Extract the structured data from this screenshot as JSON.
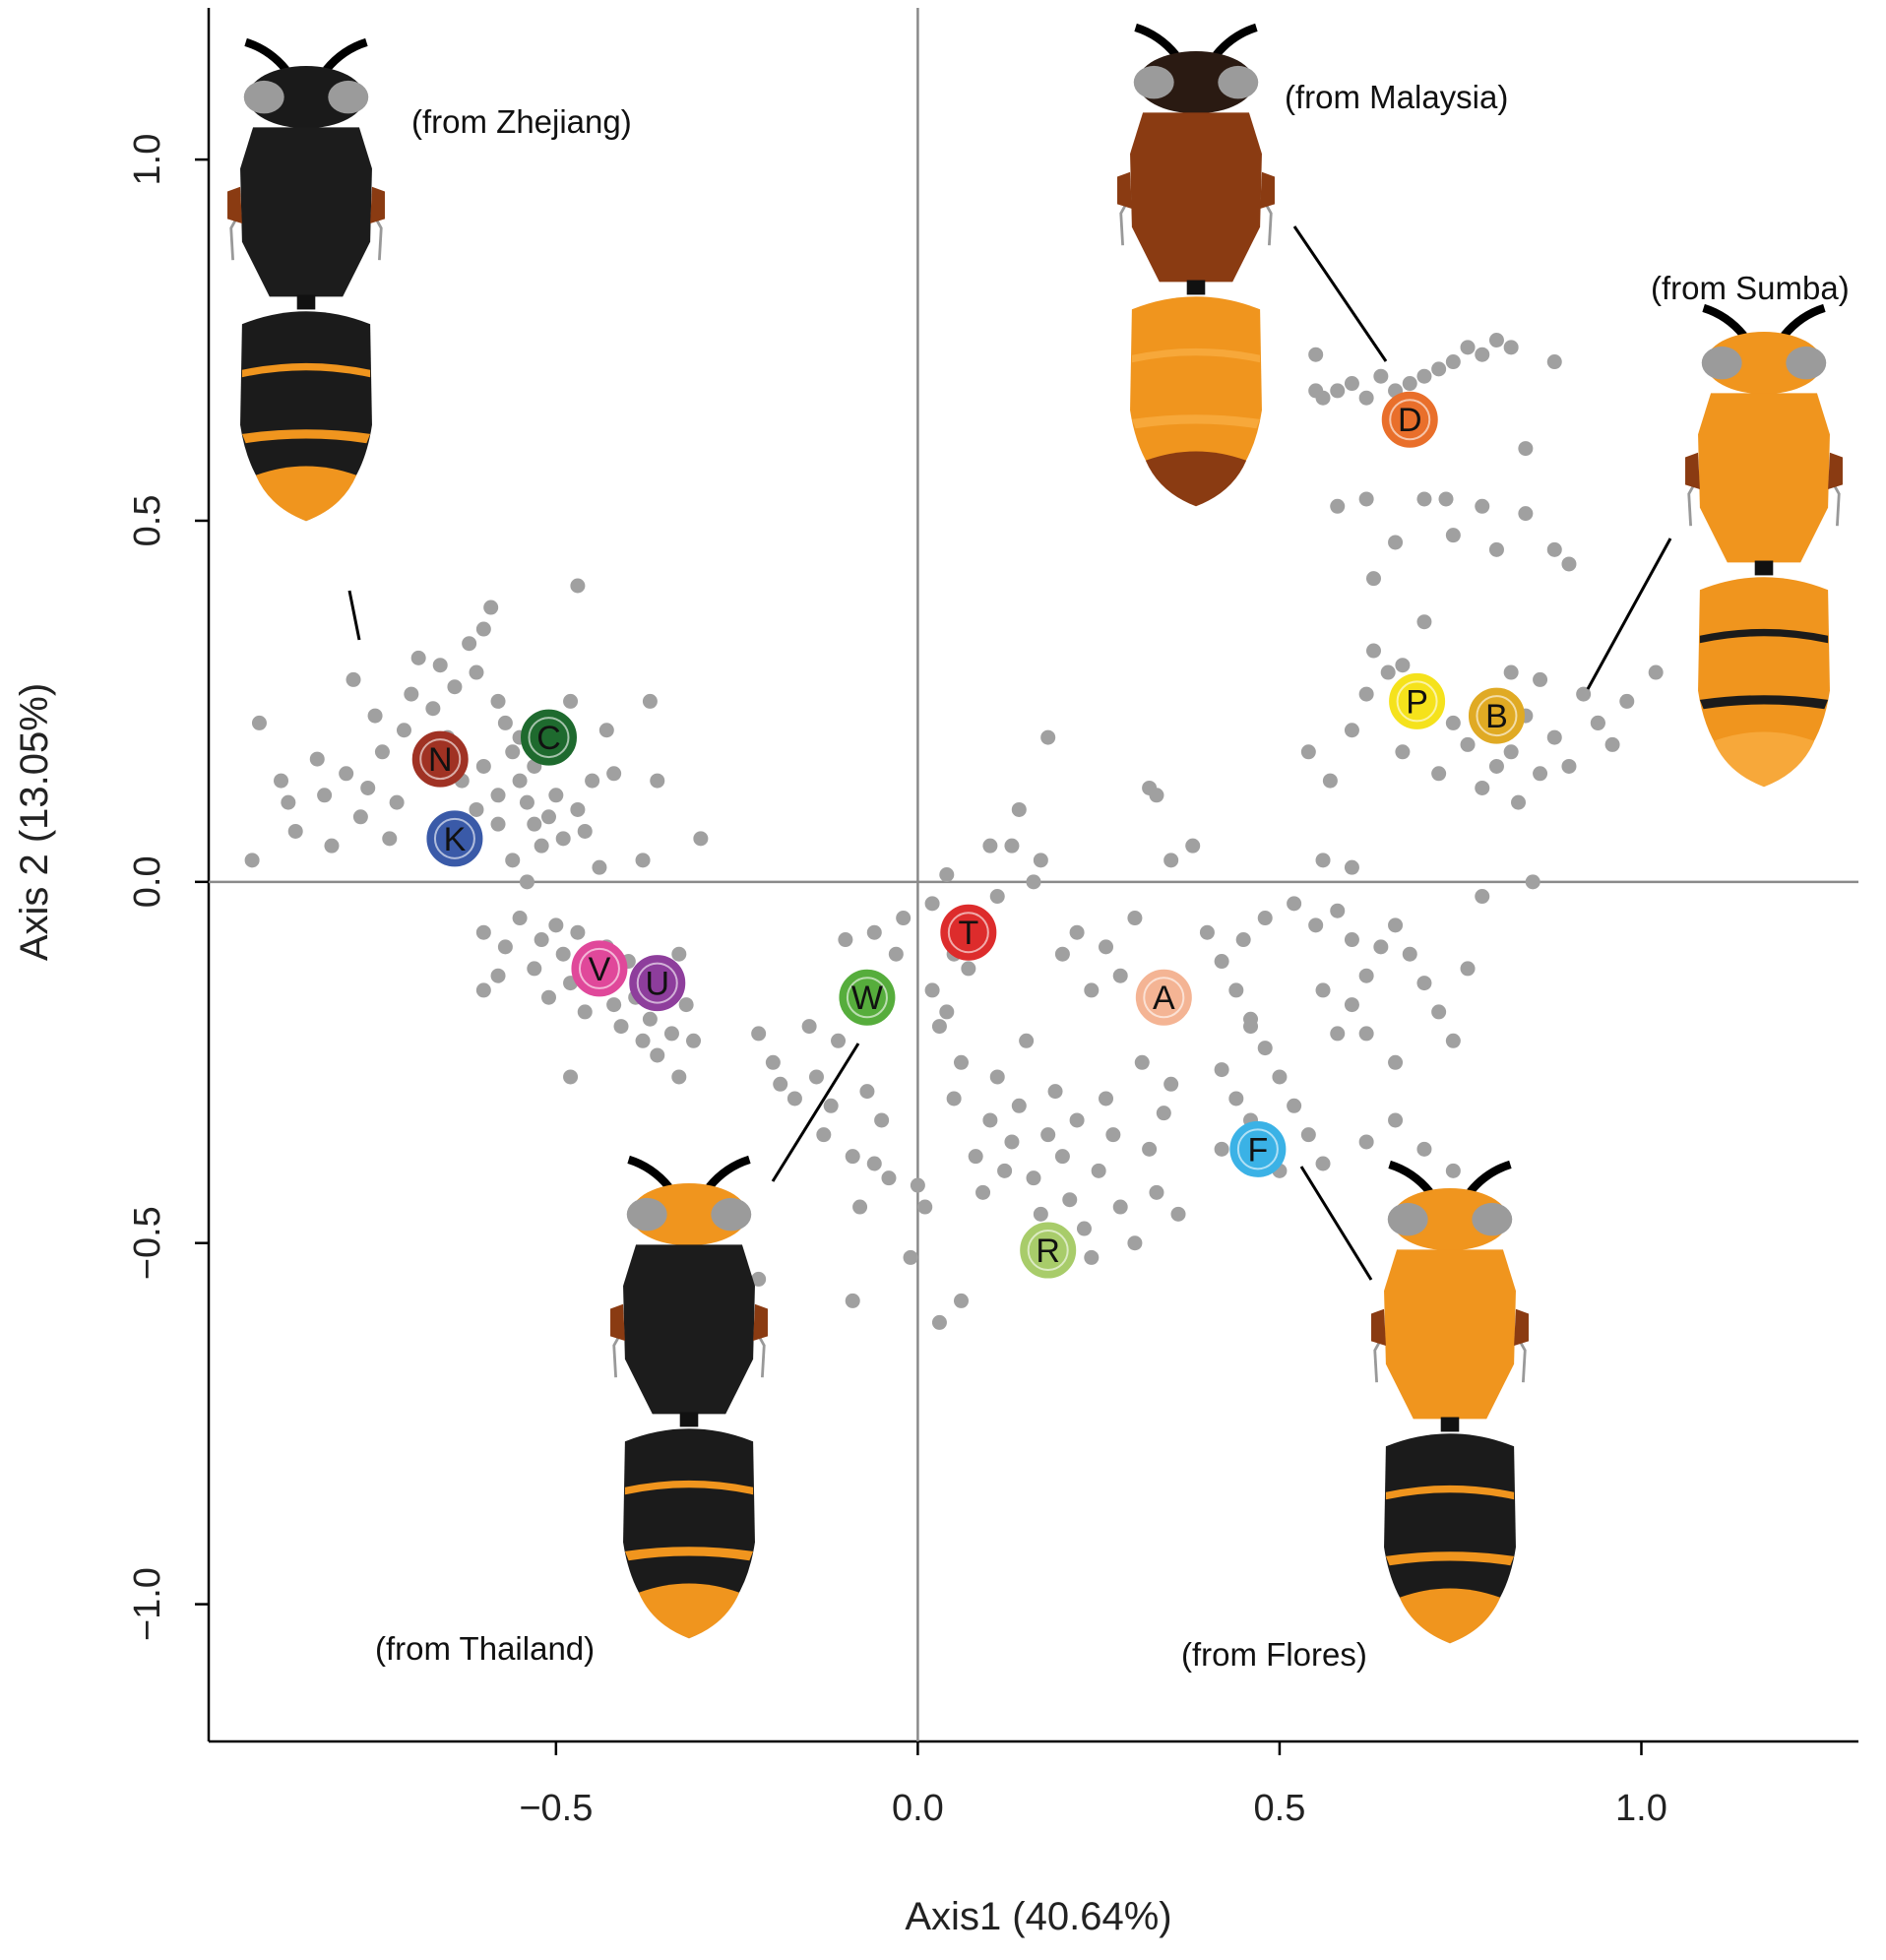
{
  "chart_data": {
    "type": "scatter",
    "xlabel": "Axis1 (40.64%)",
    "ylabel": "Axis 2 (13.05%)",
    "xlim": [
      -0.98,
      1.3
    ],
    "ylim": [
      -1.19,
      1.21
    ],
    "xticks": [
      -0.5,
      0.0,
      0.5,
      1.0
    ],
    "yticks": [
      -1.0,
      -0.5,
      0.0,
      0.5,
      1.0
    ],
    "xtick_labels": [
      "−0.5",
      "0.0",
      "0.5",
      "1.0"
    ],
    "ytick_labels": [
      "−1.0",
      "−0.5",
      "0.0",
      "0.5",
      "1.0"
    ],
    "grid": false,
    "reference_lines": {
      "x": 0.0,
      "y": 0.0
    },
    "point_color": "#a0a0a0",
    "points": [
      [
        -0.91,
        0.22
      ],
      [
        -0.92,
        0.03
      ],
      [
        -0.88,
        0.14
      ],
      [
        -0.86,
        0.07
      ],
      [
        -0.87,
        0.11
      ],
      [
        -0.83,
        0.17
      ],
      [
        -0.82,
        0.12
      ],
      [
        -0.79,
        0.15
      ],
      [
        -0.77,
        0.09
      ],
      [
        -0.81,
        0.05
      ],
      [
        -0.78,
        0.28
      ],
      [
        -0.76,
        0.13
      ],
      [
        -0.74,
        0.18
      ],
      [
        -0.73,
        0.06
      ],
      [
        -0.71,
        0.21
      ],
      [
        -0.7,
        0.26
      ],
      [
        -0.69,
        0.31
      ],
      [
        -0.67,
        0.24
      ],
      [
        -0.66,
        0.3
      ],
      [
        -0.65,
        0.2
      ],
      [
        -0.64,
        0.27
      ],
      [
        -0.62,
        0.33
      ],
      [
        -0.61,
        0.29
      ],
      [
        -0.6,
        0.35
      ],
      [
        -0.59,
        0.38
      ],
      [
        -0.58,
        0.25
      ],
      [
        -0.57,
        0.22
      ],
      [
        -0.56,
        0.18
      ],
      [
        -0.55,
        0.14
      ],
      [
        -0.54,
        0.11
      ],
      [
        -0.53,
        0.08
      ],
      [
        -0.52,
        0.05
      ],
      [
        -0.61,
        0.1
      ],
      [
        -0.58,
        0.08
      ],
      [
        -0.56,
        0.03
      ],
      [
        -0.54,
        0.0
      ],
      [
        -0.5,
        0.12
      ],
      [
        -0.48,
        0.25
      ],
      [
        -0.47,
        0.1
      ],
      [
        -0.46,
        0.07
      ],
      [
        -0.45,
        0.14
      ],
      [
        -0.44,
        0.02
      ],
      [
        -0.43,
        0.21
      ],
      [
        -0.42,
        0.15
      ],
      [
        -0.38,
        0.03
      ],
      [
        -0.37,
        0.25
      ],
      [
        -0.36,
        0.14
      ],
      [
        -0.3,
        0.06
      ],
      [
        -0.47,
        0.41
      ],
      [
        -0.75,
        0.23
      ],
      [
        -0.72,
        0.11
      ],
      [
        -0.68,
        0.16
      ],
      [
        -0.63,
        0.14
      ],
      [
        -0.6,
        0.16
      ],
      [
        -0.58,
        0.12
      ],
      [
        -0.55,
        0.2
      ],
      [
        -0.53,
        0.16
      ],
      [
        -0.51,
        0.09
      ],
      [
        -0.49,
        0.06
      ],
      [
        -0.6,
        -0.07
      ],
      [
        -0.58,
        -0.13
      ],
      [
        -0.57,
        -0.09
      ],
      [
        -0.55,
        -0.05
      ],
      [
        -0.53,
        -0.12
      ],
      [
        -0.52,
        -0.08
      ],
      [
        -0.51,
        -0.16
      ],
      [
        -0.5,
        -0.06
      ],
      [
        -0.49,
        -0.1
      ],
      [
        -0.48,
        -0.14
      ],
      [
        -0.47,
        -0.07
      ],
      [
        -0.46,
        -0.18
      ],
      [
        -0.45,
        -0.13
      ],
      [
        -0.43,
        -0.09
      ],
      [
        -0.42,
        -0.17
      ],
      [
        -0.41,
        -0.2
      ],
      [
        -0.4,
        -0.11
      ],
      [
        -0.39,
        -0.16
      ],
      [
        -0.38,
        -0.22
      ],
      [
        -0.37,
        -0.19
      ],
      [
        -0.36,
        -0.24
      ],
      [
        -0.35,
        -0.14
      ],
      [
        -0.34,
        -0.21
      ],
      [
        -0.33,
        -0.1
      ],
      [
        -0.32,
        -0.17
      ],
      [
        -0.31,
        -0.22
      ],
      [
        -0.48,
        -0.27
      ],
      [
        -0.33,
        -0.27
      ],
      [
        -0.6,
        -0.15
      ],
      [
        -0.22,
        -0.21
      ],
      [
        -0.2,
        -0.25
      ],
      [
        -0.19,
        -0.28
      ],
      [
        -0.17,
        -0.3
      ],
      [
        -0.15,
        -0.2
      ],
      [
        -0.14,
        -0.27
      ],
      [
        -0.13,
        -0.35
      ],
      [
        -0.12,
        -0.31
      ],
      [
        -0.11,
        -0.22
      ],
      [
        -0.1,
        -0.08
      ],
      [
        -0.09,
        -0.38
      ],
      [
        -0.08,
        -0.45
      ],
      [
        -0.07,
        -0.29
      ],
      [
        -0.06,
        -0.39
      ],
      [
        -0.05,
        -0.33
      ],
      [
        -0.04,
        -0.41
      ],
      [
        -0.06,
        -0.07
      ],
      [
        -0.03,
        -0.1
      ],
      [
        -0.02,
        -0.05
      ],
      [
        -0.01,
        -0.52
      ],
      [
        0.0,
        -0.42
      ],
      [
        0.01,
        -0.45
      ],
      [
        0.02,
        -0.15
      ],
      [
        0.03,
        -0.2
      ],
      [
        0.04,
        -0.18
      ],
      [
        0.05,
        -0.3
      ],
      [
        0.06,
        -0.25
      ],
      [
        0.07,
        -0.12
      ],
      [
        0.08,
        -0.38
      ],
      [
        0.09,
        -0.43
      ],
      [
        0.1,
        -0.33
      ],
      [
        0.11,
        -0.27
      ],
      [
        0.12,
        -0.4
      ],
      [
        0.13,
        -0.36
      ],
      [
        0.14,
        -0.31
      ],
      [
        0.15,
        -0.22
      ],
      [
        0.16,
        -0.41
      ],
      [
        0.17,
        -0.46
      ],
      [
        0.18,
        -0.35
      ],
      [
        0.19,
        -0.29
      ],
      [
        0.2,
        -0.38
      ],
      [
        0.21,
        -0.44
      ],
      [
        0.22,
        -0.33
      ],
      [
        0.23,
        -0.48
      ],
      [
        0.24,
        -0.52
      ],
      [
        0.25,
        -0.4
      ],
      [
        0.26,
        -0.3
      ],
      [
        0.27,
        -0.35
      ],
      [
        0.28,
        -0.45
      ],
      [
        0.3,
        -0.5
      ],
      [
        0.31,
        -0.25
      ],
      [
        0.32,
        -0.37
      ],
      [
        0.33,
        -0.43
      ],
      [
        0.34,
        -0.32
      ],
      [
        0.35,
        -0.28
      ],
      [
        0.36,
        -0.46
      ],
      [
        0.05,
        -0.1
      ],
      [
        0.08,
        -0.06
      ],
      [
        0.11,
        -0.02
      ],
      [
        0.13,
        0.05
      ],
      [
        0.17,
        0.03
      ],
      [
        0.2,
        -0.1
      ],
      [
        0.22,
        -0.07
      ],
      [
        0.24,
        -0.15
      ],
      [
        0.26,
        -0.09
      ],
      [
        0.28,
        -0.13
      ],
      [
        0.3,
        -0.05
      ],
      [
        0.18,
        0.2
      ],
      [
        0.32,
        0.13
      ],
      [
        0.33,
        0.12
      ],
      [
        0.35,
        0.03
      ],
      [
        0.38,
        0.05
      ],
      [
        0.4,
        -0.07
      ],
      [
        0.42,
        -0.11
      ],
      [
        0.44,
        -0.15
      ],
      [
        0.46,
        -0.19
      ],
      [
        0.48,
        -0.23
      ],
      [
        0.5,
        -0.27
      ],
      [
        0.52,
        -0.31
      ],
      [
        0.54,
        -0.35
      ],
      [
        0.56,
        -0.39
      ],
      [
        0.58,
        -0.21
      ],
      [
        0.6,
        -0.17
      ],
      [
        0.62,
        -0.13
      ],
      [
        0.64,
        -0.09
      ],
      [
        0.66,
        -0.06
      ],
      [
        0.68,
        -0.1
      ],
      [
        0.7,
        -0.14
      ],
      [
        0.72,
        -0.18
      ],
      [
        0.74,
        -0.22
      ],
      [
        0.76,
        -0.12
      ],
      [
        0.45,
        -0.08
      ],
      [
        0.48,
        -0.05
      ],
      [
        0.52,
        -0.03
      ],
      [
        0.55,
        -0.06
      ],
      [
        0.58,
        -0.04
      ],
      [
        0.6,
        -0.08
      ],
      [
        0.5,
        -0.4
      ],
      [
        0.48,
        -0.36
      ],
      [
        0.46,
        -0.33
      ],
      [
        0.44,
        -0.3
      ],
      [
        0.42,
        -0.26
      ],
      [
        0.62,
        -0.36
      ],
      [
        0.66,
        -0.33
      ],
      [
        0.7,
        -0.37
      ],
      [
        0.74,
        -0.4
      ],
      [
        0.56,
        -0.15
      ],
      [
        0.62,
        -0.21
      ],
      [
        0.66,
        -0.25
      ],
      [
        0.46,
        -0.2
      ],
      [
        0.42,
        -0.37
      ],
      [
        -0.22,
        -0.55
      ],
      [
        -0.09,
        -0.58
      ],
      [
        0.03,
        -0.61
      ],
      [
        0.06,
        -0.58
      ],
      [
        0.02,
        -0.03
      ],
      [
        0.04,
        0.01
      ],
      [
        0.1,
        0.05
      ],
      [
        0.14,
        0.1
      ],
      [
        0.16,
        0.0
      ],
      [
        0.6,
        0.02
      ],
      [
        0.56,
        0.03
      ],
      [
        0.78,
        -0.02
      ],
      [
        0.54,
        0.18
      ],
      [
        0.57,
        0.14
      ],
      [
        0.6,
        0.21
      ],
      [
        0.62,
        0.26
      ],
      [
        0.65,
        0.29
      ],
      [
        0.67,
        0.18
      ],
      [
        0.7,
        0.23
      ],
      [
        0.72,
        0.15
      ],
      [
        0.74,
        0.22
      ],
      [
        0.76,
        0.19
      ],
      [
        0.78,
        0.13
      ],
      [
        0.8,
        0.25
      ],
      [
        0.82,
        0.18
      ],
      [
        0.84,
        0.23
      ],
      [
        0.86,
        0.28
      ],
      [
        0.88,
        0.2
      ],
      [
        0.9,
        0.16
      ],
      [
        0.92,
        0.26
      ],
      [
        0.94,
        0.22
      ],
      [
        0.96,
        0.19
      ],
      [
        0.98,
        0.25
      ],
      [
        1.02,
        0.29
      ],
      [
        0.63,
        0.32
      ],
      [
        0.67,
        0.3
      ],
      [
        0.7,
        0.36
      ],
      [
        0.66,
        0.47
      ],
      [
        0.7,
        0.53
      ],
      [
        0.74,
        0.48
      ],
      [
        0.78,
        0.52
      ],
      [
        0.8,
        0.46
      ],
      [
        0.84,
        0.51
      ],
      [
        0.88,
        0.46
      ],
      [
        0.9,
        0.44
      ],
      [
        0.62,
        0.53
      ],
      [
        0.58,
        0.52
      ],
      [
        0.63,
        0.42
      ],
      [
        0.73,
        0.53
      ],
      [
        0.84,
        0.6
      ],
      [
        0.8,
        0.16
      ],
      [
        0.83,
        0.11
      ],
      [
        0.86,
        0.15
      ],
      [
        0.82,
        0.29
      ],
      [
        0.66,
        0.68
      ],
      [
        0.68,
        0.69
      ],
      [
        0.7,
        0.7
      ],
      [
        0.72,
        0.71
      ],
      [
        0.74,
        0.72
      ],
      [
        0.76,
        0.74
      ],
      [
        0.78,
        0.73
      ],
      [
        0.8,
        0.75
      ],
      [
        0.82,
        0.74
      ],
      [
        0.88,
        0.72
      ],
      [
        0.62,
        0.67
      ],
      [
        0.6,
        0.69
      ],
      [
        0.64,
        0.7
      ],
      [
        0.58,
        0.68
      ],
      [
        0.56,
        0.67
      ],
      [
        0.55,
        0.73
      ],
      [
        0.55,
        0.68
      ],
      [
        0.85,
        0.0
      ],
      [
        0.94,
        0.22
      ]
    ],
    "labeled_points": [
      {
        "label": "N",
        "x": -0.66,
        "y": 0.17,
        "color": "#a03224"
      },
      {
        "label": "C",
        "x": -0.51,
        "y": 0.2,
        "color": "#1e6a2e"
      },
      {
        "label": "K",
        "x": -0.64,
        "y": 0.06,
        "color": "#3a5aa8"
      },
      {
        "label": "V",
        "x": -0.44,
        "y": -0.12,
        "color": "#e0489a"
      },
      {
        "label": "U",
        "x": -0.36,
        "y": -0.14,
        "color": "#8e3e9c"
      },
      {
        "label": "W",
        "x": -0.07,
        "y": -0.16,
        "color": "#56ad3c"
      },
      {
        "label": "T",
        "x": 0.07,
        "y": -0.07,
        "color": "#dd2c2c"
      },
      {
        "label": "A",
        "x": 0.34,
        "y": -0.16,
        "color": "#f4b494"
      },
      {
        "label": "F",
        "x": 0.47,
        "y": -0.37,
        "color": "#3bb2e6"
      },
      {
        "label": "R",
        "x": 0.18,
        "y": -0.51,
        "color": "#a8cc6a"
      },
      {
        "label": "D",
        "x": 0.68,
        "y": 0.64,
        "color": "#e96f2b"
      },
      {
        "label": "P",
        "x": 0.69,
        "y": 0.25,
        "color": "#f5e21c"
      },
      {
        "label": "B",
        "x": 0.8,
        "y": 0.23,
        "color": "#e0aa24"
      }
    ],
    "annotations": [
      {
        "text": "(from Zhejiang)"
      },
      {
        "text": "(from Malaysia)"
      },
      {
        "text": "(from Sumba)"
      },
      {
        "text": "(from Thailand)"
      },
      {
        "text": "(from Flores)"
      }
    ]
  }
}
